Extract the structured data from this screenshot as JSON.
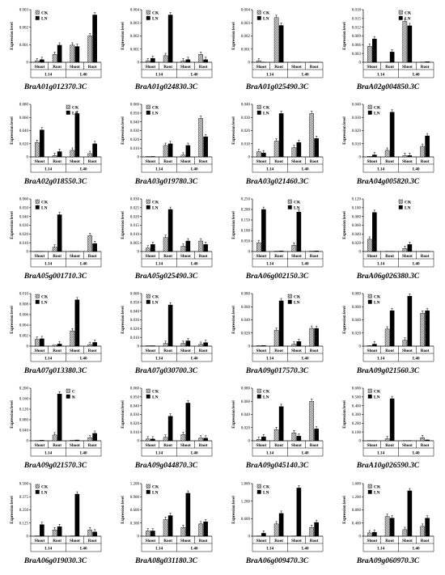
{
  "chart_data": [
    {
      "type": "bar",
      "title": "BraA01g012370.3C",
      "ylabel": "Expression level",
      "ticks": [
        "0",
        "0.001",
        "0.002",
        "0.003"
      ],
      "ylim": [
        0,
        0.004
      ],
      "groups": [
        "Shoot",
        "Root",
        "Shoot",
        "Root"
      ],
      "lines": [
        "L14",
        "L40"
      ],
      "series": [
        {
          "name": "CK",
          "values": [
            0.0001,
            0.0006,
            0.0013,
            0.002
          ]
        },
        {
          "name": "LN",
          "values": [
            0.0002,
            0.0013,
            0.0012,
            0.0036
          ]
        }
      ],
      "legend": "top-left"
    },
    {
      "type": "bar",
      "title": "BraA01g024830.3C",
      "ylabel": "Expression level",
      "ticks": [
        "0",
        "0.001",
        "0.002",
        "0.003",
        "0.004"
      ],
      "ylim": [
        0,
        0.004
      ],
      "groups": [
        "Shoot",
        "Root",
        "Shoot",
        "Root"
      ],
      "lines": [
        "L14",
        "L40"
      ],
      "series": [
        {
          "name": "CK",
          "values": [
            0.0001,
            0.0005,
            0.0001,
            0.0006
          ]
        },
        {
          "name": "LN",
          "values": [
            0.0003,
            0.0036,
            0.0002,
            0.0002
          ]
        }
      ],
      "legend": "top-left"
    },
    {
      "type": "bar",
      "title": "BraA01g025490.3C",
      "ylabel": "Expression level",
      "ticks": [
        "0",
        "0.001",
        "0.002",
        "0.003",
        "0.004"
      ],
      "ylim": [
        0,
        0.004
      ],
      "groups": [
        "Shoot",
        "Root",
        "Shoot",
        "Root"
      ],
      "lines": [
        "L14",
        "L40"
      ],
      "series": [
        {
          "name": "CK",
          "values": [
            0.0001,
            0.0034,
            0.0,
            0.0
          ]
        },
        {
          "name": "LN",
          "values": [
            0.0,
            0.0028,
            0.0,
            0.0
          ]
        }
      ],
      "legend": "top-left"
    },
    {
      "type": "bar",
      "title": "BraA02g004850.3C",
      "ylabel": "Expression level",
      "ticks": [
        "0",
        "0.003",
        "0.006",
        "0.009",
        "0.012",
        "0.015",
        "0.018"
      ],
      "ylim": [
        0,
        0.018
      ],
      "groups": [
        "Shoot",
        "Root",
        "Shoot",
        "Root"
      ],
      "lines": [
        "L14",
        "L40"
      ],
      "series": [
        {
          "name": "CK",
          "values": [
            0.0055,
            0.0001,
            0.014,
            0.0001
          ]
        },
        {
          "name": "LN",
          "values": [
            0.008,
            0.0035,
            0.0125,
            0.0002
          ]
        }
      ],
      "legend": "top-right"
    },
    {
      "type": "bar",
      "title": "BraA02g018550.3C",
      "ylabel": "Expression level",
      "ticks": [
        "0",
        "0.020",
        "0.040",
        "0.060",
        "0.080"
      ],
      "ylim": [
        0,
        0.08
      ],
      "groups": [
        "Shoot",
        "Root",
        "Shoot",
        "Root"
      ],
      "lines": [
        "L14",
        "L40"
      ],
      "series": [
        {
          "name": "CK",
          "values": [
            0.022,
            0.002,
            0.01,
            0.005
          ]
        },
        {
          "name": "LN",
          "values": [
            0.041,
            0.008,
            0.066,
            0.02
          ]
        }
      ],
      "legend": "top-right"
    },
    {
      "type": "bar",
      "title": "BraA03g019780.3C",
      "ylabel": "Expression level",
      "ticks": [
        "0",
        "0.010",
        "0.020",
        "0.030",
        "0.040",
        "0.050",
        "0.060"
      ],
      "ylim": [
        0,
        0.06
      ],
      "groups": [
        "Shoot",
        "Root",
        "Shoot",
        "Root"
      ],
      "lines": [
        "L14",
        "L40"
      ],
      "series": [
        {
          "name": "CK",
          "values": [
            0.0005,
            0.013,
            0.002,
            0.044
          ]
        },
        {
          "name": "LN",
          "values": [
            0.0005,
            0.015,
            0.013,
            0.023
          ]
        }
      ],
      "legend": "top-left"
    },
    {
      "type": "bar",
      "title": "BraA03g021460.3C",
      "ylabel": "Expression level",
      "ticks": [
        "0",
        "0.010",
        "0.020",
        "0.030",
        "0.040"
      ],
      "ylim": [
        0,
        0.04
      ],
      "groups": [
        "Shoot",
        "Root",
        "Shoot",
        "Root"
      ],
      "lines": [
        "L14",
        "L40"
      ],
      "series": [
        {
          "name": "CK",
          "values": [
            0.004,
            0.012,
            0.007,
            0.033
          ]
        },
        {
          "name": "LN",
          "values": [
            0.003,
            0.033,
            0.011,
            0.014
          ]
        }
      ],
      "legend": "top-left"
    },
    {
      "type": "bar",
      "title": "BraA04g005820.3C",
      "ylabel": "Expression level",
      "ticks": [
        "0",
        "0.010",
        "0.020",
        "0.030",
        "0.040"
      ],
      "ylim": [
        0,
        0.04
      ],
      "groups": [
        "Shoot",
        "Root",
        "Shoot",
        "Root"
      ],
      "lines": [
        "L14",
        "L40"
      ],
      "series": [
        {
          "name": "CK",
          "values": [
            0.0005,
            0.005,
            0.001,
            0.008
          ]
        },
        {
          "name": "LN",
          "values": [
            0.0015,
            0.034,
            0.001,
            0.016
          ]
        }
      ],
      "legend": "top-left"
    },
    {
      "type": "bar",
      "title": "BraA05g001710.3C",
      "ylabel": "Expression level",
      "ticks": [
        "0",
        "0.010",
        "0.020",
        "0.030",
        "0.040",
        "0.050",
        "0.060"
      ],
      "ylim": [
        0,
        0.06
      ],
      "groups": [
        "Shoot",
        "Root",
        "Shoot",
        "Root"
      ],
      "lines": [
        "L14",
        "L40"
      ],
      "series": [
        {
          "name": "CK",
          "values": [
            0.0001,
            0.005,
            0.0001,
            0.018
          ]
        },
        {
          "name": "LN",
          "values": [
            0.0001,
            0.042,
            0.0001,
            0.009
          ]
        }
      ],
      "legend": "top-left"
    },
    {
      "type": "bar",
      "title": "BraA05g025490.3C",
      "ylabel": "Expression level",
      "ticks": [
        "0",
        "0.005",
        "0.010",
        "0.015",
        "0.020",
        "0.025",
        "0.030"
      ],
      "ylim": [
        0,
        0.03
      ],
      "groups": [
        "Shoot",
        "Root",
        "Shoot",
        "Root"
      ],
      "lines": [
        "L14",
        "L40"
      ],
      "series": [
        {
          "name": "CK",
          "values": [
            0.002,
            0.008,
            0.003,
            0.006
          ]
        },
        {
          "name": "LN",
          "values": [
            0.004,
            0.024,
            0.006,
            0.004
          ]
        }
      ],
      "legend": "top-left"
    },
    {
      "type": "bar",
      "title": "BraA06g002150.3C",
      "ylabel": "Expression level",
      "ticks": [
        "0",
        "0.050",
        "0.100",
        "0.150",
        "0.200",
        "0.250"
      ],
      "ylim": [
        0,
        0.25
      ],
      "groups": [
        "Shoot",
        "Root",
        "Shoot",
        "Root"
      ],
      "lines": [
        "L14",
        "L40"
      ],
      "series": [
        {
          "name": "CK",
          "values": [
            0.042,
            0.002,
            0.03,
            0.002
          ]
        },
        {
          "name": "LN",
          "values": [
            0.2,
            0.003,
            0.188,
            0.003
          ]
        }
      ],
      "legend": "top-right"
    },
    {
      "type": "bar",
      "title": "BraA06g026380.3C",
      "ylabel": "Expression level",
      "ticks": [
        "0",
        "0.020",
        "0.040",
        "0.060",
        "0.080",
        "0.100",
        "0.120"
      ],
      "ylim": [
        0,
        0.12
      ],
      "groups": [
        "Shoot",
        "Root",
        "Shoot",
        "Root"
      ],
      "lines": [
        "L14",
        "L40"
      ],
      "series": [
        {
          "name": "CK",
          "values": [
            0.028,
            0.0005,
            0.007,
            0.0005
          ]
        },
        {
          "name": "LN",
          "values": [
            0.089,
            0.0005,
            0.016,
            0.0005
          ]
        }
      ],
      "legend": "top-right"
    },
    {
      "type": "bar",
      "title": "BraA07g013380.3C",
      "ylabel": "Expression level",
      "ticks": [
        "0",
        "0.002",
        "0.004",
        "0.006",
        "0.008",
        "0.010"
      ],
      "ylim": [
        0,
        0.01
      ],
      "groups": [
        "Shoot",
        "Root",
        "Shoot",
        "Root"
      ],
      "lines": [
        "L14",
        "L40"
      ],
      "series": [
        {
          "name": "CK",
          "values": [
            0.0013,
            0.0002,
            0.0029,
            0.0003
          ]
        },
        {
          "name": "LN",
          "values": [
            0.0014,
            0.0004,
            0.0088,
            0.0007
          ]
        }
      ],
      "legend": "top-left"
    },
    {
      "type": "bar",
      "title": "BraA07g030700.3C",
      "ylabel": "Expression level",
      "ticks": [
        "0",
        "0.010",
        "0.020",
        "0.030",
        "0.040",
        "0.050",
        "0.060"
      ],
      "ylim": [
        0,
        0.06
      ],
      "groups": [
        "Shoot",
        "Root",
        "Shoot",
        "Root"
      ],
      "lines": [
        "L14",
        "L40"
      ],
      "series": [
        {
          "name": "CK",
          "values": [
            0.0005,
            0.003,
            0.003,
            0.002
          ]
        },
        {
          "name": "LN",
          "values": [
            0.0005,
            0.047,
            0.006,
            0.004
          ]
        }
      ],
      "legend": "top-left"
    },
    {
      "type": "bar",
      "title": "BraA09g017570.3C",
      "ylabel": "Expression level",
      "ticks": [
        "0",
        "0.020",
        "0.040",
        "0.060",
        "0.080"
      ],
      "ylim": [
        0,
        0.08
      ],
      "groups": [
        "Shoot",
        "Root",
        "Shoot",
        "Root"
      ],
      "lines": [
        "L14",
        "L40"
      ],
      "series": [
        {
          "name": "CK",
          "values": [
            0.001,
            0.024,
            0.003,
            0.027
          ]
        },
        {
          "name": "LN",
          "values": [
            0.001,
            0.069,
            0.007,
            0.027
          ]
        }
      ],
      "legend": "top-right"
    },
    {
      "type": "bar",
      "title": "BraA09g021560.3C",
      "ylabel": "Expression level",
      "ticks": [
        "0",
        "0.020",
        "0.040",
        "0.060",
        "0.080"
      ],
      "ylim": [
        0,
        0.08
      ],
      "groups": [
        "Shoot",
        "Root",
        "Shoot",
        "Root"
      ],
      "lines": [
        "L14",
        "L40"
      ],
      "series": [
        {
          "name": "CK",
          "values": [
            0.001,
            0.026,
            0.009,
            0.05
          ]
        },
        {
          "name": "LN",
          "values": [
            0.003,
            0.054,
            0.076,
            0.054
          ]
        }
      ],
      "legend": "top-left"
    },
    {
      "type": "bar",
      "title": "BraA09g021570.3C",
      "ylabel": "Expression level",
      "ticks": [
        "0",
        "0.040",
        "0.080",
        "0.120",
        "0.160",
        "0.200"
      ],
      "ylim": [
        0,
        0.2
      ],
      "groups": [
        "Shoot",
        "Root",
        "Shoot",
        "Root"
      ],
      "lines": [
        "L14",
        "L40"
      ],
      "series": [
        {
          "name": "C",
          "values": [
            0.001,
            0.022,
            0.002,
            0.012
          ]
        },
        {
          "name": "K",
          "values": [
            0.002,
            0.178,
            0.003,
            0.028
          ]
        }
      ],
      "legend": "top-right"
    },
    {
      "type": "bar",
      "title": "BraA09g044870.3C",
      "ylabel": "Expression level",
      "ticks": [
        "0",
        "0.010",
        "0.020",
        "0.030",
        "0.040",
        "0.050",
        "0.060"
      ],
      "ylim": [
        0,
        0.06
      ],
      "groups": [
        "Shoot",
        "Root",
        "Shoot",
        "Root"
      ],
      "lines": [
        "L14",
        "L40"
      ],
      "series": [
        {
          "name": "CK",
          "values": [
            0.002,
            0.004,
            0.007,
            0.003
          ]
        },
        {
          "name": "LN",
          "values": [
            0.002,
            0.028,
            0.043,
            0.003
          ]
        }
      ],
      "legend": "top-left"
    },
    {
      "type": "bar",
      "title": "BraA09g045140.3C",
      "ylabel": "Expression level",
      "ticks": [
        "0",
        "0.020",
        "0.040",
        "0.060",
        "0.080"
      ],
      "ylim": [
        0,
        0.08
      ],
      "groups": [
        "Shoot",
        "Root",
        "Shoot",
        "Root"
      ],
      "lines": [
        "L14",
        "L40"
      ],
      "series": [
        {
          "name": "CK",
          "values": [
            0.002,
            0.017,
            0.012,
            0.06
          ]
        },
        {
          "name": "LN",
          "values": [
            0.006,
            0.052,
            0.007,
            0.018
          ]
        }
      ],
      "legend": "top-left"
    },
    {
      "type": "bar",
      "title": "BraA10g026590.3C",
      "ylabel": "Expression level",
      "ticks": [
        "0",
        "0.100",
        "0.200",
        "0.300",
        "0.400",
        "0.500",
        "0.600"
      ],
      "ylim": [
        0,
        0.6
      ],
      "groups": [
        "Shoot",
        "Root",
        "Shoot",
        "Root"
      ],
      "lines": [
        "L14",
        "L40"
      ],
      "series": [
        {
          "name": "CK",
          "values": [
            0.003,
            0.022,
            0.003,
            0.035
          ]
        },
        {
          "name": "LN",
          "values": [
            0.003,
            0.48,
            0.003,
            0.01
          ]
        }
      ],
      "legend": "top-left"
    },
    {
      "type": "bar",
      "title": "BraA06g019030.3C",
      "ylabel": "Expression level",
      "ticks": [
        "0",
        "0.125",
        "0.250",
        "0.375",
        "0.500"
      ],
      "ylim": [
        0,
        0.5
      ],
      "groups": [
        "Shoot",
        "Root",
        "Shoot",
        "Root"
      ],
      "lines": [
        "L14",
        "L40"
      ],
      "series": [
        {
          "name": "CK",
          "values": [
            0.003,
            0.06,
            0.003,
            0.06
          ]
        },
        {
          "name": "LN",
          "values": [
            0.11,
            0.09,
            0.4,
            0.04
          ]
        }
      ],
      "legend": "top-left"
    },
    {
      "type": "bar",
      "title": "BraA08g031180.3C",
      "ylabel": "Expression level",
      "ticks": [
        "0",
        "0.300",
        "0.600",
        "0.900",
        "1.200"
      ],
      "ylim": [
        0,
        1.2
      ],
      "groups": [
        "Shoot",
        "Root",
        "Shoot",
        "Root"
      ],
      "lines": [
        "L14",
        "L40"
      ],
      "series": [
        {
          "name": "CK",
          "values": [
            0.12,
            0.38,
            0.2,
            0.28
          ]
        },
        {
          "name": "LN",
          "values": [
            0.12,
            0.47,
            0.98,
            0.33
          ]
        }
      ],
      "legend": "top-left"
    },
    {
      "type": "bar",
      "title": "BraA06g009470.3C",
      "ylabel": "Expression level",
      "ticks": [
        "0",
        "0.600",
        "1.200",
        "1.800"
      ],
      "ylim": [
        0,
        1.8
      ],
      "groups": [
        "Shoot",
        "Root",
        "Shoot",
        "Root"
      ],
      "lines": [
        "L14",
        "L40"
      ],
      "series": [
        {
          "name": "CK",
          "values": [
            0.005,
            0.42,
            0.005,
            0.3
          ]
        },
        {
          "name": "LN",
          "values": [
            0.1,
            0.78,
            1.65,
            0.47
          ]
        }
      ],
      "legend": "top-left"
    },
    {
      "type": "bar",
      "title": "BraA09g060970.3C",
      "ylabel": "Expression level",
      "ticks": [
        "0",
        "0.400",
        "0.800",
        "1.200",
        "1.600"
      ],
      "ylim": [
        0,
        1.6
      ],
      "groups": [
        "Shoot",
        "Root",
        "Shoot",
        "Root"
      ],
      "lines": [
        "L14",
        "L40"
      ],
      "series": [
        {
          "name": "CK",
          "values": [
            0.1,
            0.6,
            0.2,
            0.3
          ]
        },
        {
          "name": "LN",
          "values": [
            0.12,
            0.55,
            1.38,
            0.55
          ]
        }
      ],
      "legend": "top-left"
    }
  ]
}
